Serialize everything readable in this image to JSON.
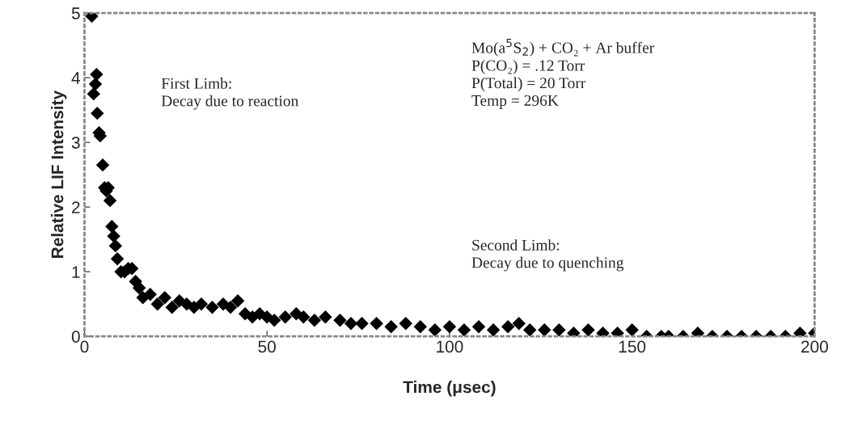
{
  "chart_data": {
    "type": "scatter",
    "xlabel": "Time (μsec)",
    "ylabel": "Relative LIF Intensity",
    "x": [
      2,
      2.5,
      3,
      3.3,
      3.5,
      4,
      4.3,
      5,
      5.5,
      6,
      6.5,
      7,
      7.5,
      8,
      8.5,
      9,
      10,
      11,
      12,
      13,
      14,
      15,
      16,
      18,
      20,
      22,
      24,
      26,
      28,
      30,
      32,
      35,
      38,
      40,
      42,
      44,
      46,
      48,
      50,
      52,
      55,
      58,
      60,
      63,
      66,
      70,
      73,
      76,
      80,
      84,
      88,
      92,
      96,
      100,
      104,
      108,
      112,
      116,
      119,
      122,
      126,
      130,
      134,
      138,
      142,
      146,
      150,
      154,
      158,
      160,
      164,
      168,
      172,
      176,
      180,
      184,
      188,
      192,
      196,
      200
    ],
    "series": [
      {
        "color": "#000000",
        "values": [
          4.95,
          3.75,
          3.9,
          4.05,
          3.45,
          3.15,
          3.1,
          2.65,
          2.3,
          2.25,
          2.3,
          2.1,
          1.7,
          1.55,
          1.4,
          1.2,
          1.0,
          1.0,
          1.05,
          1.05,
          0.85,
          0.75,
          0.6,
          0.65,
          0.5,
          0.6,
          0.45,
          0.55,
          0.5,
          0.45,
          0.5,
          0.45,
          0.5,
          0.45,
          0.55,
          0.35,
          0.3,
          0.35,
          0.3,
          0.25,
          0.3,
          0.35,
          0.3,
          0.25,
          0.3,
          0.25,
          0.2,
          0.2,
          0.2,
          0.15,
          0.2,
          0.15,
          0.1,
          0.15,
          0.1,
          0.15,
          0.1,
          0.15,
          0.2,
          0.1,
          0.1,
          0.1,
          0.05,
          0.1,
          0.05,
          0.05,
          0.1,
          0.0,
          0.0,
          0.0,
          0.0,
          0.05,
          0.0,
          0.0,
          0.0,
          0.0,
          0.0,
          0.0,
          0.05,
          0.05
        ]
      }
    ],
    "marker": "diamond",
    "xlim": [
      0,
      200
    ],
    "ylim": [
      0,
      5
    ],
    "xticks": [
      0,
      50,
      100,
      150,
      200
    ],
    "yticks": [
      0,
      1,
      2,
      3,
      4,
      5
    ],
    "grid": false,
    "legend": false,
    "annotations": [
      "First Limb:\nDecay due to reaction",
      "Mo(a$^{5}$S$_{2}$) + CO₂ + Ar buffer\nP(CO₂) = .12 Torr\nP(Total) = 20 Torr\nTemp = 296K",
      "Second Limb:\nDecay due to quenching"
    ]
  }
}
